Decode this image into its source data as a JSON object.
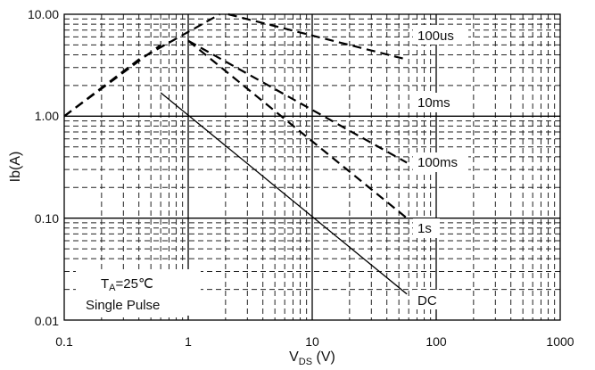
{
  "chart_data": {
    "type": "line",
    "title": "",
    "xscale": "log",
    "yscale": "log",
    "xlim": [
      0.1,
      1000
    ],
    "ylim": [
      0.01,
      10
    ],
    "x_ticks": [
      "0.1",
      "1",
      "10",
      "100",
      "1000"
    ],
    "y_ticks": [
      "0.01",
      "0.10",
      "1.00",
      "10.00"
    ],
    "xlabel": {
      "main": "V",
      "sub": "DS",
      "unit": " (V)"
    },
    "ylabel": "Ib(A)",
    "grid": true,
    "annotation": {
      "line1_main": "T",
      "line1_sub": "A",
      "line1_rest": "=25℃",
      "line2": "Single Pulse"
    },
    "series": [
      {
        "name": "100us",
        "style": "dashed",
        "points": [
          [
            2.1,
            10
          ],
          [
            58,
            3.6
          ]
        ]
      },
      {
        "name": "10ms",
        "style": "dashed",
        "points": [
          [
            1,
            5.5
          ],
          [
            58,
            0.35
          ]
        ]
      },
      {
        "name": "100ms",
        "style": "dashed",
        "points": [
          [
            0.1,
            1.0
          ],
          [
            0.4,
            3.6
          ],
          [
            1.8,
            10
          ]
        ]
      },
      {
        "name": "1s",
        "style": "dashed",
        "points": [
          [
            1,
            5.5
          ],
          [
            58,
            0.1
          ]
        ]
      },
      {
        "name": "DC",
        "style": "solid",
        "points": [
          [
            0.6,
            1.7
          ],
          [
            58,
            0.018
          ]
        ]
      }
    ],
    "rds_limit": {
      "style": "dashed",
      "points": [
        [
          0.1,
          1.0
        ],
        [
          0.6,
          5.0
        ]
      ]
    },
    "curve_labels": [
      "100us",
      "10ms",
      "100ms",
      "1s",
      "DC"
    ]
  }
}
